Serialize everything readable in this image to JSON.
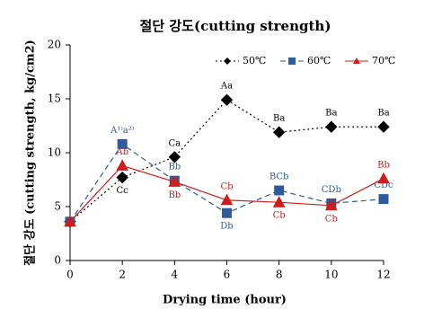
{
  "chart_data": {
    "type": "line",
    "title": "절단 강도(cutting strength)",
    "x_label": "Drying time (hour)",
    "y_label": "절단 강도 (cutting  strength, kg/cm2)",
    "x": [
      0,
      2,
      4,
      6,
      8,
      10,
      12
    ],
    "xlim": [
      0,
      12
    ],
    "xticks": [
      0,
      2,
      4,
      6,
      8,
      10,
      12
    ],
    "ylim": [
      0,
      20
    ],
    "yticks": [
      0,
      5,
      10,
      15,
      20
    ],
    "legend": "top-right",
    "series": [
      {
        "name": "50℃",
        "color": "#000000",
        "marker": "diamond",
        "dash": "dotted",
        "values": [
          3.6,
          7.7,
          9.6,
          14.9,
          11.9,
          12.4,
          12.4
        ],
        "labels": [
          null,
          "Cc",
          "Ca",
          "Aa",
          "Ba",
          "Ba",
          "Ba"
        ]
      },
      {
        "name": "60℃",
        "color": "#2e5b9a",
        "marker": "square",
        "dash": "dashed",
        "values": [
          3.6,
          10.8,
          7.4,
          4.4,
          6.5,
          5.3,
          5.7
        ],
        "labels": [
          null,
          "A¹⁾a²⁾",
          "Bb",
          "Db",
          "BCb",
          "CDb",
          "CDc"
        ]
      },
      {
        "name": "70℃",
        "color": "#d01c1c",
        "marker": "triangle",
        "dash": "solid",
        "values": [
          3.6,
          8.8,
          7.3,
          5.6,
          5.4,
          5.1,
          7.6
        ],
        "labels": [
          null,
          "Ab",
          "Bb",
          "Cb",
          "Cb",
          "Cb",
          "Bb"
        ]
      }
    ]
  }
}
